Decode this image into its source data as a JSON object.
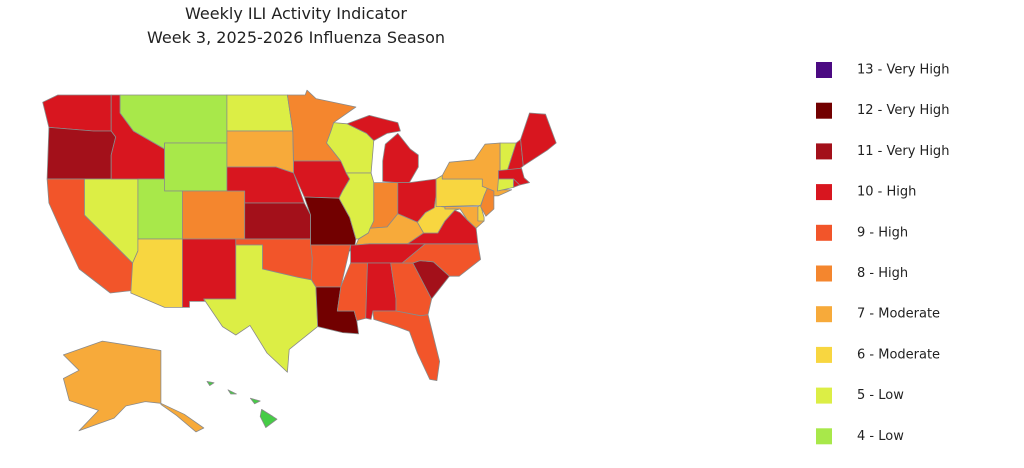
{
  "header": {
    "title": "Weekly ILI Activity Indicator",
    "subtitle": "Week 3, 2025-2026 Influenza Season"
  },
  "legend": [
    {
      "level": 13,
      "label": "13 - Very High",
      "color": "#4b0a82"
    },
    {
      "level": 12,
      "label": "12 - Very High",
      "color": "#720000"
    },
    {
      "level": 11,
      "label": "11 - Very High",
      "color": "#a3101a"
    },
    {
      "level": 10,
      "label": "10 - High",
      "color": "#d8161f"
    },
    {
      "level": 9,
      "label": "9 - High",
      "color": "#f2552a"
    },
    {
      "level": 8,
      "label": "8 - High",
      "color": "#f4862e"
    },
    {
      "level": 7,
      "label": "7 - Moderate",
      "color": "#f7aa3a"
    },
    {
      "level": 6,
      "label": "6 - Moderate",
      "color": "#f8d640"
    },
    {
      "level": 5,
      "label": "5 - Low",
      "color": "#dcee45"
    },
    {
      "level": 4,
      "label": "4 - Low",
      "color": "#a8e84a"
    }
  ],
  "level_colors": {
    "3": "#46cc46"
  },
  "map": {
    "states": {
      "WA": 10,
      "OR": 11,
      "CA": 9,
      "NV": 5,
      "ID": 10,
      "MT": 4,
      "WY": 4,
      "UT": 4,
      "AZ": 6,
      "CO": 8,
      "NM": 10,
      "ND": 5,
      "SD": 7,
      "NE": 10,
      "KS": 11,
      "OK": 9,
      "TX": 5,
      "MN": 8,
      "IA": 10,
      "MO": 12,
      "AR": 9,
      "LA": 12,
      "WI": 5,
      "IL": 5,
      "MI": 10,
      "IN": 8,
      "OH": 10,
      "KY": 7,
      "TN": 10,
      "MS": 9,
      "AL": 10,
      "GA": 9,
      "FL": 9,
      "SC": 11,
      "NC": 9,
      "VA": 10,
      "WV": 6,
      "MD": 7,
      "DE": 6,
      "PA": 6,
      "NJ": 8,
      "NY": 7,
      "VT": 5,
      "NH": 10,
      "ME": 10,
      "MA": 10,
      "CT": 5,
      "RI": 10,
      "AK": 7,
      "HI": 3
    }
  }
}
